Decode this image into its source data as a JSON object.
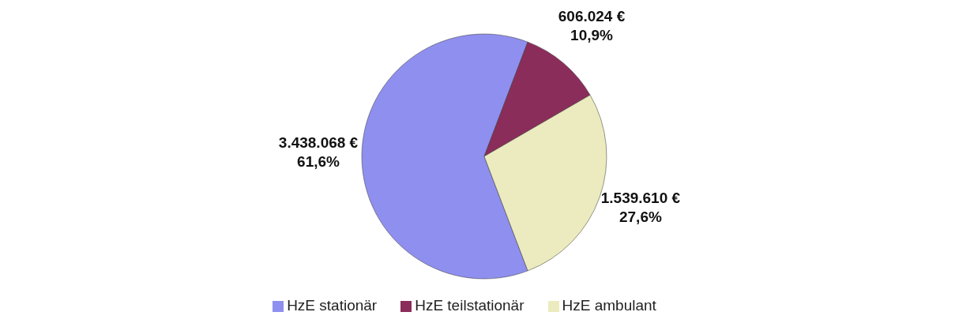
{
  "chart_data": {
    "type": "pie",
    "categories": [
      "HzE stationär",
      "HzE teilstationär",
      "HzE ambulant"
    ],
    "values": [
      3438068,
      606024,
      1539610
    ],
    "colors": [
      "#8f8fef",
      "#8b2d5a",
      "#ebebbf"
    ],
    "value_labels": [
      "3.438.068 €\n61,6%",
      "606.024 €\n10,9%",
      "1.539.610 €\n27,6%"
    ],
    "legend": "bottom"
  }
}
